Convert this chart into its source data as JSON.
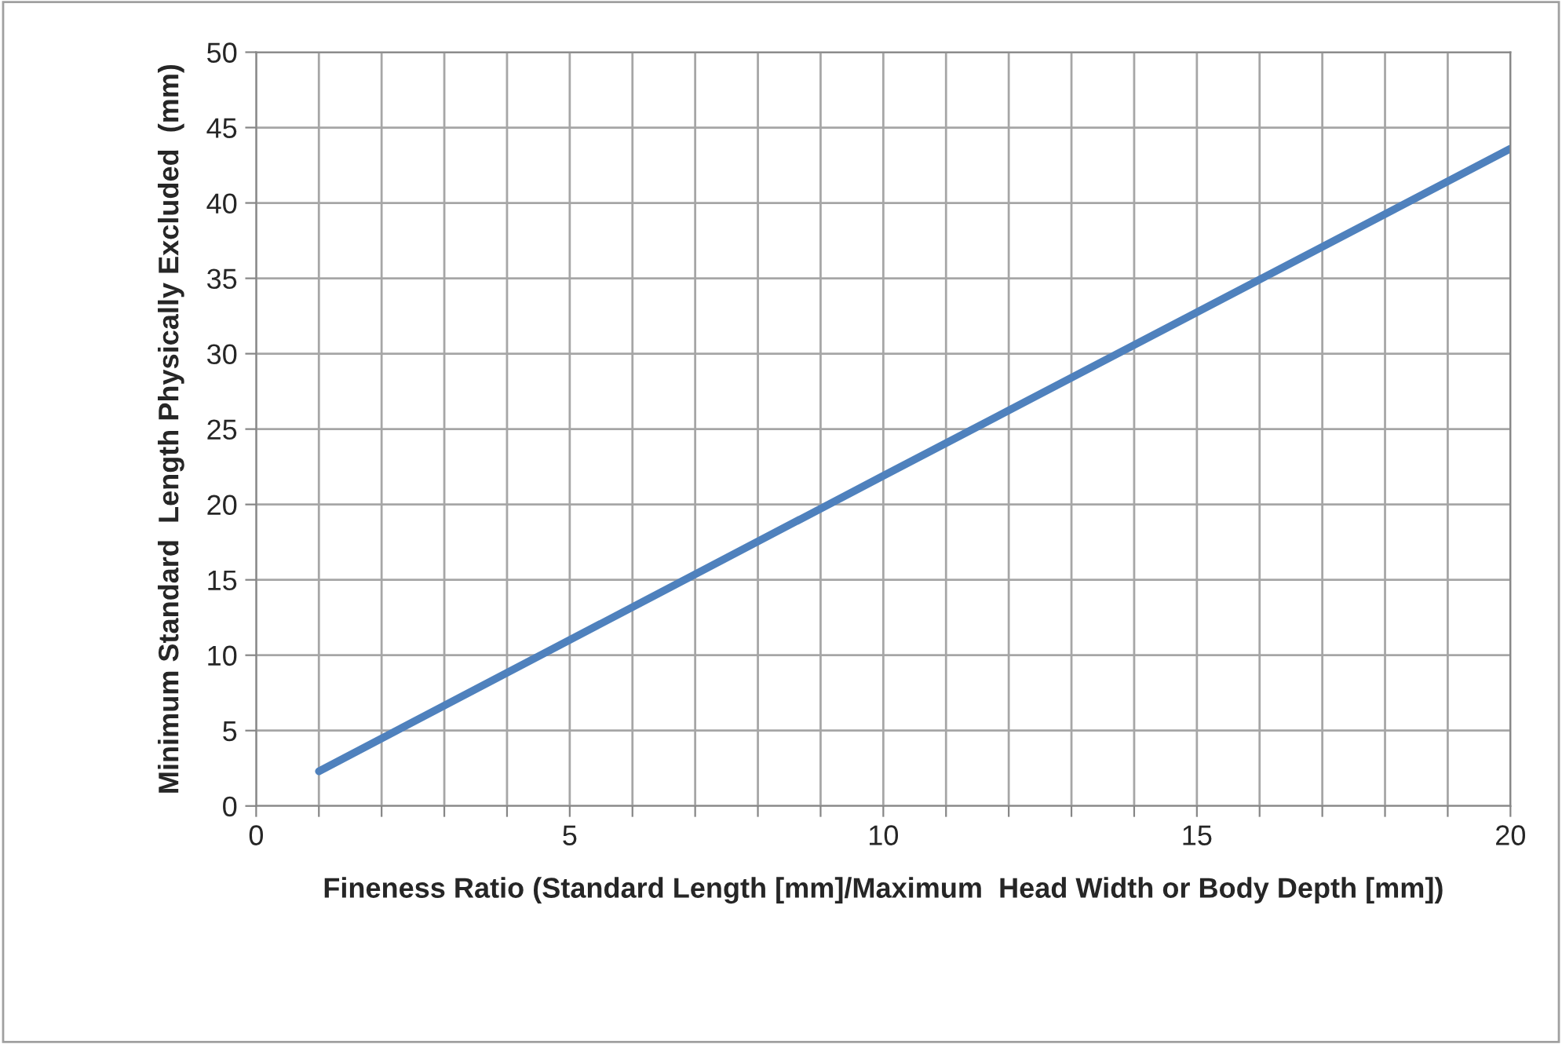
{
  "chart_data": {
    "type": "line",
    "xlabel": "Fineness Ratio (Standard Length [mm]/Maximum  Head Width or Body Depth [mm])",
    "ylabel": "Minimum Standard  Length Physically Excluded  (mm)",
    "x": [
      1,
      10,
      20
    ],
    "series": [
      {
        "color": "#4f81bd",
        "values": [
          2.3,
          21.9,
          43.6
        ]
      }
    ],
    "xlim": [
      0,
      20
    ],
    "xticks": [
      0,
      {
        "value": 1,
        "label": null
      },
      {
        "value": 2,
        "label": null
      },
      {
        "value": 3,
        "label": null
      },
      {
        "value": 4,
        "label": null
      },
      5,
      {
        "value": 6,
        "label": null
      },
      {
        "value": 7,
        "label": null
      },
      {
        "value": 8,
        "label": null
      },
      {
        "value": 9,
        "label": null
      },
      10,
      {
        "value": 11,
        "label": null
      },
      {
        "value": 12,
        "label": null
      },
      {
        "value": 13,
        "label": null
      },
      {
        "value": 14,
        "label": null
      },
      15,
      {
        "value": 16,
        "label": null
      },
      {
        "value": 17,
        "label": null
      },
      {
        "value": 18,
        "label": null
      },
      {
        "value": 19,
        "label": null
      },
      20
    ],
    "ylim": [
      0,
      50
    ],
    "yticks": [
      0,
      5,
      10,
      15,
      20,
      25,
      30,
      35,
      40,
      45,
      50
    ],
    "grid": true,
    "marker": "none",
    "line_style": "solid"
  }
}
